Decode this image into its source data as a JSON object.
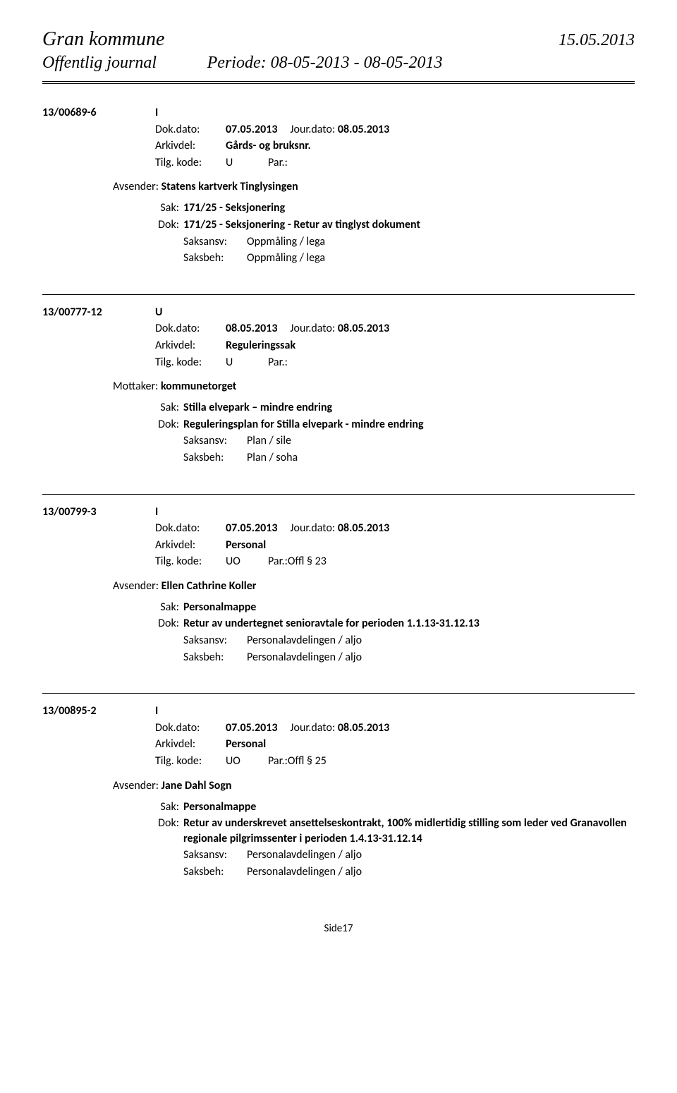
{
  "header": {
    "org": "Gran kommune",
    "date": "15.05.2013",
    "journal": "Offentlig journal",
    "period": "Periode: 08-05-2013 - 08-05-2013"
  },
  "entries": [
    {
      "id": "13/00689-6",
      "type": "I",
      "dokdato_lbl": "Dok.dato:",
      "dokdato": "07.05.2013",
      "jourdato_lbl": "Jour.dato:",
      "jourdato": "08.05.2013",
      "arkivdel_lbl": "Arkivdel:",
      "arkivdel": "Gårds- og bruksnr.",
      "tilg_lbl": "Tilg. kode:",
      "tilg": "U",
      "par_lbl": "Par.:",
      "par": "",
      "sender_lbl": "Avsender:",
      "sender": "Statens kartverk Tinglysingen",
      "sak_lbl": "Sak:",
      "sak": "171/25 - Seksjonering",
      "dok_lbl": "Dok:",
      "dok": "171/25 - Seksjonering - Retur av tinglyst dokument",
      "saksansv_lbl": "Saksansv:",
      "saksansv": "Oppmåling / lega",
      "saksbeh_lbl": "Saksbeh:",
      "saksbeh": "Oppmåling / lega"
    },
    {
      "id": "13/00777-12",
      "type": "U",
      "dokdato_lbl": "Dok.dato:",
      "dokdato": "08.05.2013",
      "jourdato_lbl": "Jour.dato:",
      "jourdato": "08.05.2013",
      "arkivdel_lbl": "Arkivdel:",
      "arkivdel": "Reguleringssak",
      "tilg_lbl": "Tilg. kode:",
      "tilg": "U",
      "par_lbl": "Par.:",
      "par": "",
      "sender_lbl": "Mottaker:",
      "sender": "kommunetorget",
      "sak_lbl": "Sak:",
      "sak": "Stilla elvepark – mindre endring",
      "dok_lbl": "Dok:",
      "dok": "Reguleringsplan for Stilla elvepark - mindre endring",
      "saksansv_lbl": "Saksansv:",
      "saksansv": "Plan / sile",
      "saksbeh_lbl": "Saksbeh:",
      "saksbeh": "Plan / soha"
    },
    {
      "id": "13/00799-3",
      "type": "I",
      "dokdato_lbl": "Dok.dato:",
      "dokdato": "07.05.2013",
      "jourdato_lbl": "Jour.dato:",
      "jourdato": "08.05.2013",
      "arkivdel_lbl": "Arkivdel:",
      "arkivdel": "Personal",
      "tilg_lbl": "Tilg. kode:",
      "tilg": "UO",
      "par_lbl": "Par.:",
      "par": "Offl § 23",
      "sender_lbl": "Avsender:",
      "sender": "Ellen Cathrine Koller",
      "sak_lbl": "Sak:",
      "sak": "Personalmappe",
      "dok_lbl": "Dok:",
      "dok": "Retur av undertegnet senioravtale for perioden 1.1.13-31.12.13",
      "saksansv_lbl": "Saksansv:",
      "saksansv": "Personalavdelingen / aljo",
      "saksbeh_lbl": "Saksbeh:",
      "saksbeh": "Personalavdelingen / aljo"
    },
    {
      "id": "13/00895-2",
      "type": "I",
      "dokdato_lbl": "Dok.dato:",
      "dokdato": "07.05.2013",
      "jourdato_lbl": "Jour.dato:",
      "jourdato": "08.05.2013",
      "arkivdel_lbl": "Arkivdel:",
      "arkivdel": "Personal",
      "tilg_lbl": "Tilg. kode:",
      "tilg": "UO",
      "par_lbl": "Par.:",
      "par": "Offl § 25",
      "sender_lbl": "Avsender:",
      "sender": "Jane Dahl Sogn",
      "sak_lbl": "Sak:",
      "sak": "Personalmappe",
      "dok_lbl": "Dok:",
      "dok": "Retur av underskrevet ansettelseskontrakt, 100% midlertidig stilling som leder ved Granavollen regionale pilgrimssenter i perioden 1.4.13-31.12.14",
      "saksansv_lbl": "Saksansv:",
      "saksansv": "Personalavdelingen / aljo",
      "saksbeh_lbl": "Saksbeh:",
      "saksbeh": "Personalavdelingen / aljo"
    }
  ],
  "footer": {
    "page": "Side17"
  }
}
